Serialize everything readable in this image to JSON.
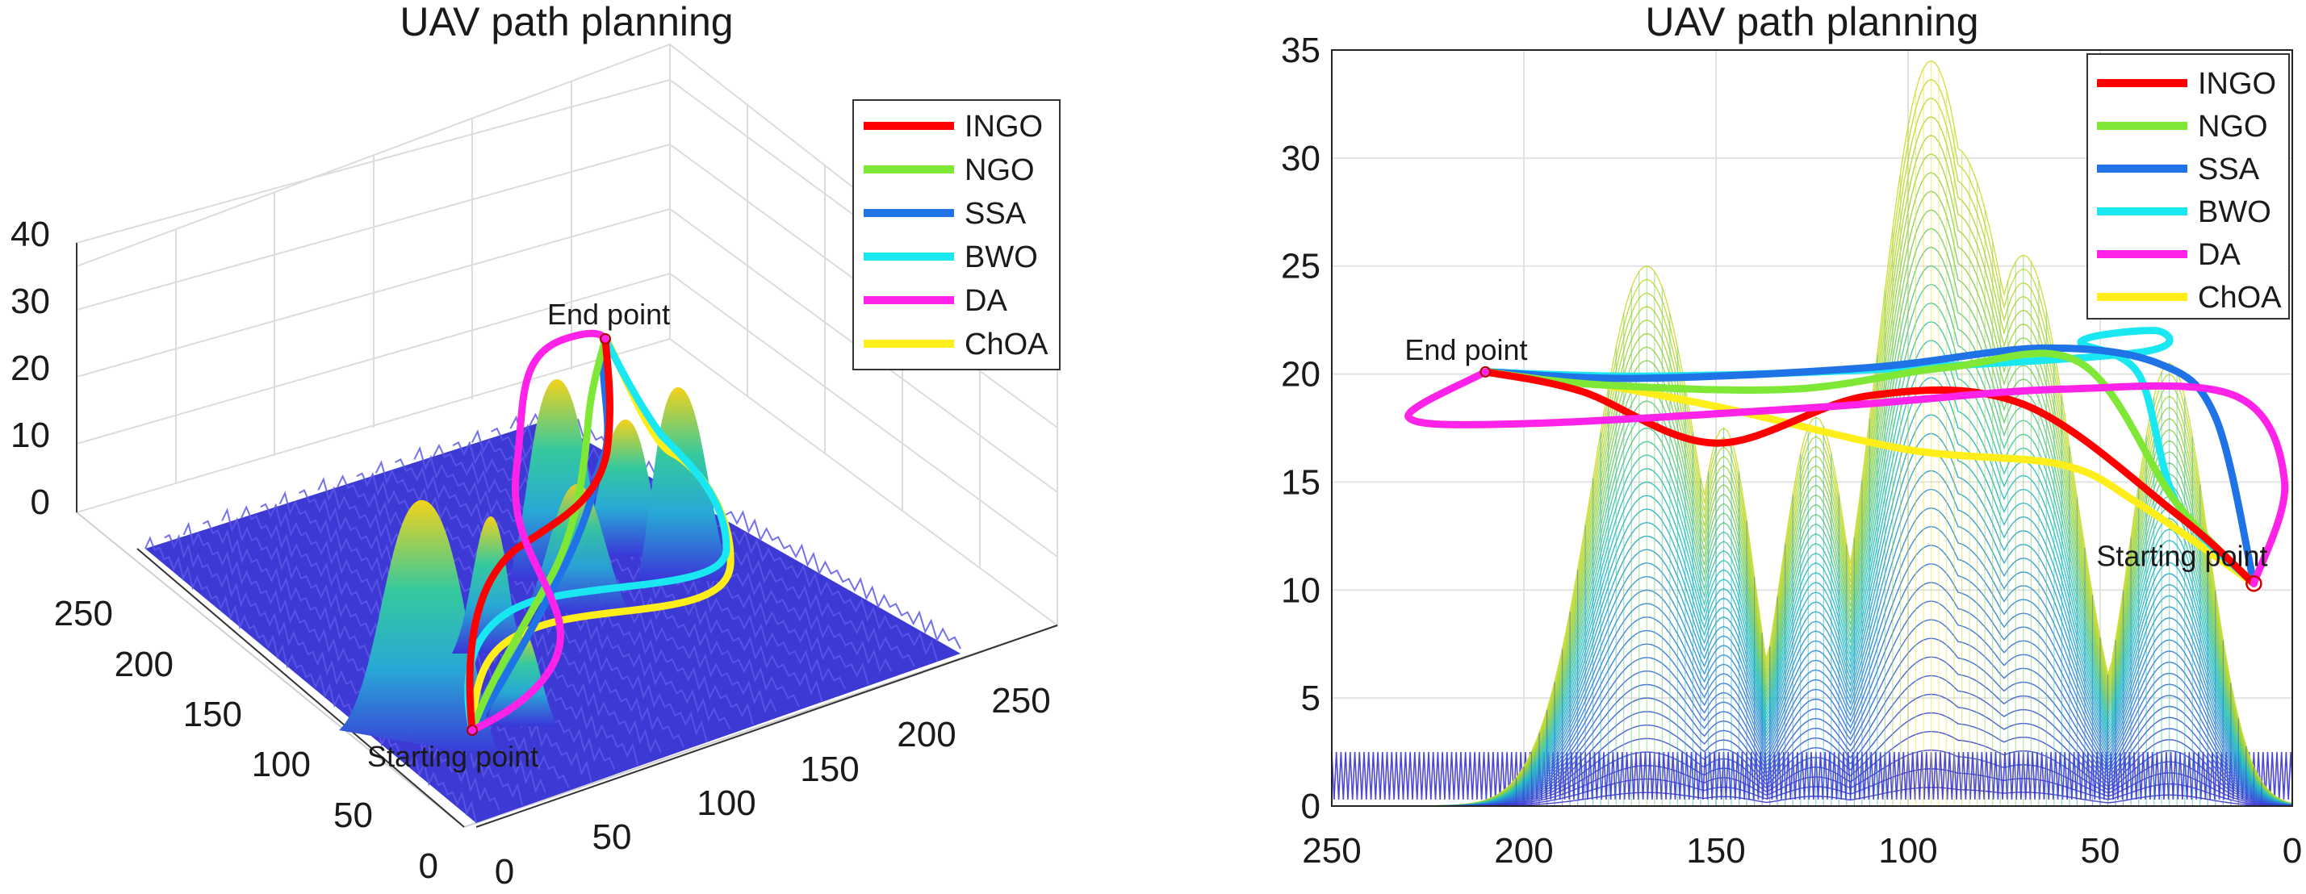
{
  "chart_data": [
    {
      "type": "3d-surface-with-paths",
      "title": "UAV path planning",
      "z_ticks": [
        "40",
        "30",
        "20",
        "10",
        "0"
      ],
      "y_ticks": [
        "250",
        "200",
        "150",
        "100",
        "50",
        "0"
      ],
      "x_ticks": [
        "0",
        "50",
        "100",
        "150",
        "200",
        "250"
      ],
      "annotations": {
        "start": "Starting point",
        "end": "End point"
      },
      "legend": [
        {
          "name": "INGO",
          "color": "#ff0000"
        },
        {
          "name": "NGO",
          "color": "#7fe836"
        },
        {
          "name": "SSA",
          "color": "#1f73e6"
        },
        {
          "name": "BWO",
          "color": "#19e8f2"
        },
        {
          "name": "DA",
          "color": "#ff22e8"
        },
        {
          "name": "ChOA",
          "color": "#ffee19"
        }
      ],
      "legend_position": "top-right"
    },
    {
      "type": "2d-side-view-with-paths",
      "title": "UAV path planning",
      "xlim": [
        250,
        0
      ],
      "ylim": [
        0,
        35
      ],
      "x_ticks": [
        "250",
        "200",
        "150",
        "100",
        "50",
        "0"
      ],
      "y_ticks": [
        "35",
        "30",
        "25",
        "20",
        "15",
        "10",
        "5",
        "0"
      ],
      "annotations": {
        "start": "Starting point",
        "end": "End point"
      },
      "start": {
        "x": 10,
        "z": 10.3
      },
      "end": {
        "x": 210,
        "z": 20.1
      },
      "peaks": [
        {
          "x": 168,
          "height": 25,
          "width": 14
        },
        {
          "x": 148,
          "height": 17.5,
          "width": 8
        },
        {
          "x": 124,
          "height": 18,
          "width": 9
        },
        {
          "x": 94,
          "height": 34.5,
          "width": 14
        },
        {
          "x": 88,
          "height": 30.5,
          "width": 18
        },
        {
          "x": 70,
          "height": 25.5,
          "width": 13
        },
        {
          "x": 32,
          "height": 20.5,
          "width": 10
        }
      ],
      "legend": [
        {
          "name": "INGO",
          "color": "#ff0000"
        },
        {
          "name": "NGO",
          "color": "#7fe836"
        },
        {
          "name": "SSA",
          "color": "#1f73e6"
        },
        {
          "name": "BWO",
          "color": "#19e8f2"
        },
        {
          "name": "DA",
          "color": "#ff22e8"
        },
        {
          "name": "ChOA",
          "color": "#ffee19"
        }
      ],
      "legend_position": "top-right"
    }
  ]
}
